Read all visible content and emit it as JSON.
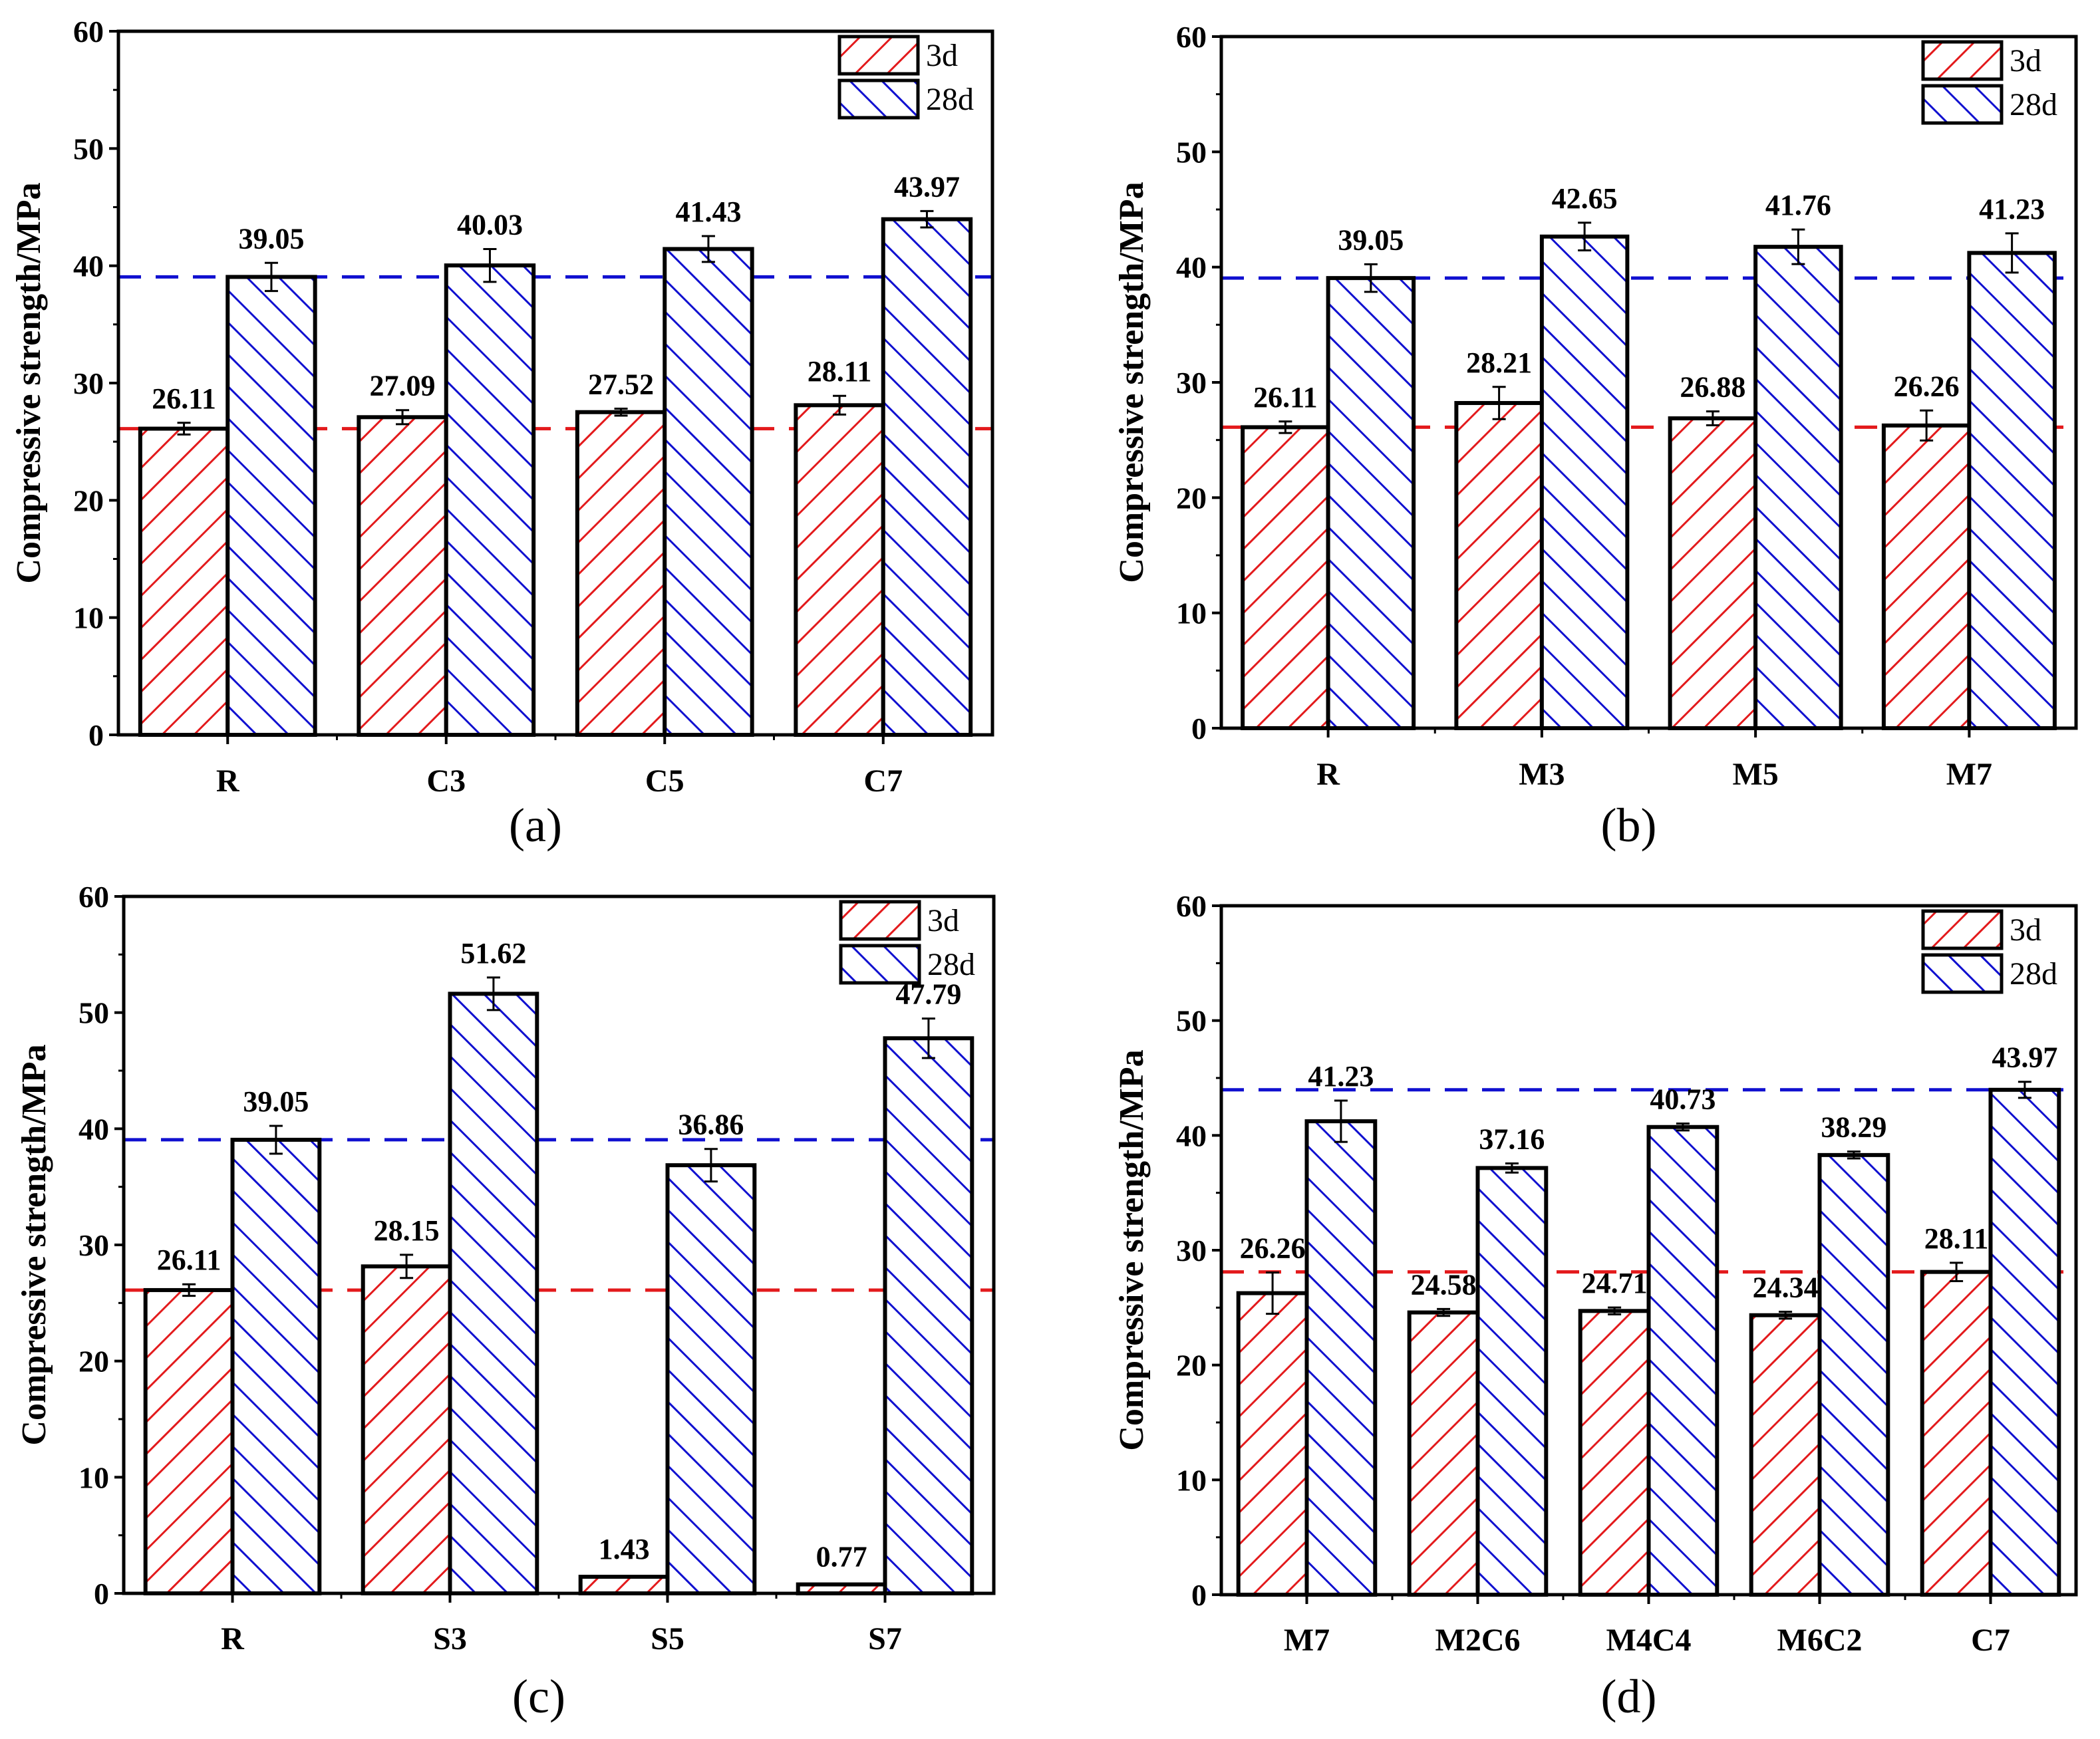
{
  "colors": {
    "early": "#e31a1c",
    "late": "#1010d0",
    "axis": "#000000"
  },
  "chart_data": [
    {
      "type": "bar",
      "panel_label": "(a)",
      "ylabel": "Compressive strength/MPa",
      "ylim": [
        0,
        60
      ],
      "yticks": [
        0,
        10,
        20,
        30,
        40,
        50,
        60
      ],
      "legend": [
        "3d",
        "28d"
      ],
      "legend_position": "top-right",
      "categories": [
        "R",
        "C3",
        "C5",
        "C7"
      ],
      "series": [
        {
          "name": "3d",
          "values": [
            26.11,
            27.09,
            27.52,
            28.11
          ],
          "labels": [
            "26.11",
            "27.09",
            "27.52",
            "28.11"
          ],
          "errors": [
            0.5,
            0.6,
            0.3,
            0.8
          ]
        },
        {
          "name": "28d",
          "values": [
            39.05,
            40.03,
            41.43,
            43.97
          ],
          "labels": [
            "39.05",
            "40.03",
            "41.43",
            "43.97"
          ],
          "errors": [
            1.2,
            1.4,
            1.1,
            0.7
          ]
        }
      ],
      "reference_lines": [
        {
          "series": "3d",
          "value": 26.11
        },
        {
          "series": "28d",
          "value": 39.05
        }
      ]
    },
    {
      "type": "bar",
      "panel_label": "(b)",
      "ylabel": "Compressive strength/MPa",
      "ylim": [
        0,
        60
      ],
      "yticks": [
        0,
        10,
        20,
        30,
        40,
        50,
        60
      ],
      "legend": [
        "3d",
        "28d"
      ],
      "legend_position": "top-right",
      "categories": [
        "R",
        "M3",
        "M5",
        "M7"
      ],
      "series": [
        {
          "name": "3d",
          "values": [
            26.11,
            28.21,
            26.88,
            26.26
          ],
          "labels": [
            "26.11",
            "28.21",
            "26.88",
            "26.26"
          ],
          "errors": [
            0.5,
            1.4,
            0.6,
            1.3
          ]
        },
        {
          "name": "28d",
          "values": [
            39.05,
            42.65,
            41.76,
            41.23
          ],
          "labels": [
            "39.05",
            "42.65",
            "41.76",
            "41.23"
          ],
          "errors": [
            1.2,
            1.2,
            1.5,
            1.7
          ]
        }
      ],
      "reference_lines": [
        {
          "series": "3d",
          "value": 26.11
        },
        {
          "series": "28d",
          "value": 39.05
        }
      ]
    },
    {
      "type": "bar",
      "panel_label": "(c)",
      "ylabel": "Compressive strength/MPa",
      "ylim": [
        0,
        60
      ],
      "yticks": [
        0,
        10,
        20,
        30,
        40,
        50,
        60
      ],
      "legend": [
        "3d",
        "28d"
      ],
      "legend_position": "top-right",
      "categories": [
        "R",
        "S3",
        "S5",
        "S7"
      ],
      "series": [
        {
          "name": "3d",
          "values": [
            26.11,
            28.15,
            1.43,
            0.77
          ],
          "labels": [
            "26.11",
            "28.15",
            "1.43",
            "0.77"
          ],
          "errors": [
            0.5,
            1.0,
            0,
            0
          ]
        },
        {
          "name": "28d",
          "values": [
            39.05,
            51.62,
            36.86,
            47.79
          ],
          "labels": [
            "39.05",
            "51.62",
            "36.86",
            "47.79"
          ],
          "errors": [
            1.2,
            1.4,
            1.4,
            1.7
          ]
        }
      ],
      "reference_lines": [
        {
          "series": "3d",
          "value": 26.11
        },
        {
          "series": "28d",
          "value": 39.05
        }
      ]
    },
    {
      "type": "bar",
      "panel_label": "(d)",
      "ylabel": "Compressive strength/MPa",
      "ylim": [
        0,
        60
      ],
      "yticks": [
        0,
        10,
        20,
        30,
        40,
        50,
        60
      ],
      "legend": [
        "3d",
        "28d"
      ],
      "legend_position": "top-right",
      "categories": [
        "M7",
        "M2C6",
        "M4C4",
        "M6C2",
        "C7"
      ],
      "series": [
        {
          "name": "3d",
          "values": [
            26.26,
            24.58,
            24.71,
            24.34,
            28.11
          ],
          "labels": [
            "26.26",
            "24.58",
            "24.71",
            "24.34",
            "28.11"
          ],
          "errors": [
            1.8,
            0.3,
            0.3,
            0.3,
            0.8
          ]
        },
        {
          "name": "28d",
          "values": [
            41.23,
            37.16,
            40.73,
            38.29,
            43.97
          ],
          "labels": [
            "41.23",
            "37.16",
            "40.73",
            "38.29",
            "43.97"
          ],
          "errors": [
            1.8,
            0.4,
            0.3,
            0.3,
            0.7
          ]
        }
      ],
      "reference_lines": [
        {
          "series": "3d",
          "value": 28.11
        },
        {
          "series": "28d",
          "value": 43.97
        }
      ]
    }
  ]
}
